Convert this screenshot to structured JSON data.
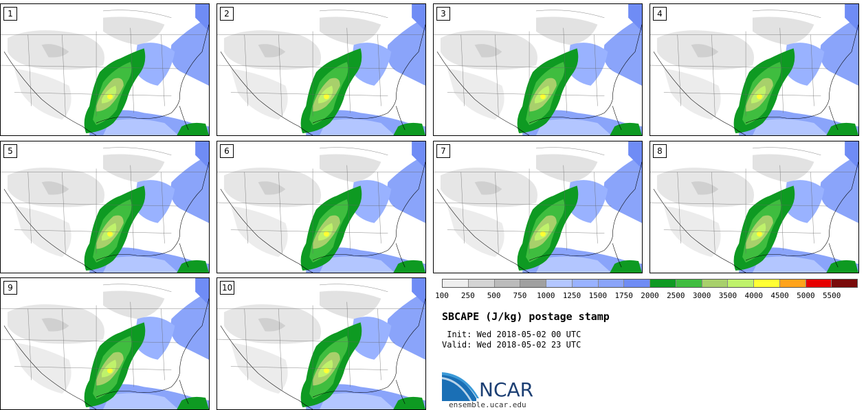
{
  "panels": [
    {
      "label": "1"
    },
    {
      "label": "2"
    },
    {
      "label": "3"
    },
    {
      "label": "4"
    },
    {
      "label": "5"
    },
    {
      "label": "6"
    },
    {
      "label": "7"
    },
    {
      "label": "8"
    },
    {
      "label": "9"
    },
    {
      "label": "10"
    }
  ],
  "colorbar": {
    "ticks": [
      "100",
      "250",
      "500",
      "750",
      "1000",
      "1250",
      "1500",
      "1750",
      "2000",
      "2500",
      "3000",
      "3500",
      "4000",
      "4500",
      "5000",
      "5500"
    ],
    "colors": [
      "#eeeeee",
      "#d4d4d4",
      "#bbbbbb",
      "#a0a0a0",
      "#b3c6ff",
      "#99b2ff",
      "#8aa4fa",
      "#6f8cf5",
      "#0e9a22",
      "#3fbd3f",
      "#a8d06b",
      "#bff26b",
      "#ffff33",
      "#ffa31a",
      "#e60000",
      "#7a0a0a"
    ]
  },
  "title": "SBCAPE (J/kg) postage stamp",
  "init": " Init: Wed 2018-05-02 00 UTC",
  "valid": "Valid: Wed 2018-05-02 23 UTC",
  "logo": {
    "text": "NCAR",
    "site": "ensemble.ucar.edu"
  }
}
